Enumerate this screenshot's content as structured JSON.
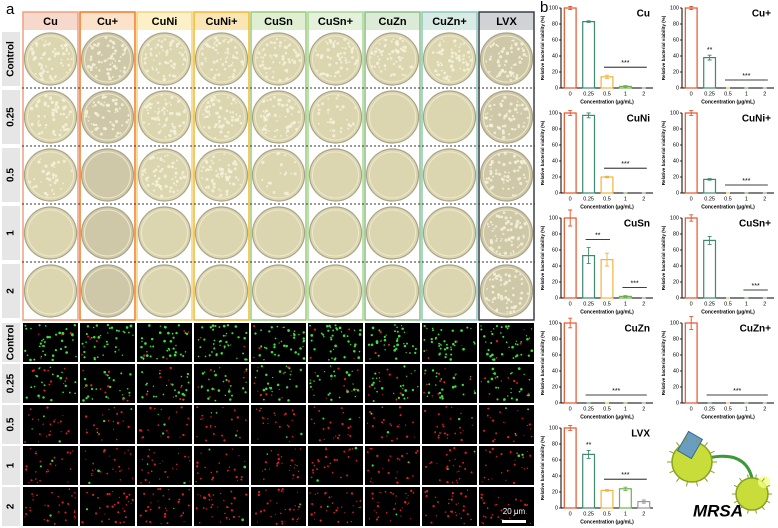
{
  "panel_a": {
    "label": "a",
    "columns": [
      "Cu",
      "Cu+",
      "CuNi",
      "CuNi+",
      "CuSn",
      "CuSn+",
      "CuZn",
      "CuZn+",
      "LVX"
    ],
    "rows": [
      "Control",
      "0.25",
      "0.5",
      "1",
      "2"
    ],
    "fluorescence_rows": [
      "Control",
      "0.25",
      "0.5",
      "1",
      "2"
    ],
    "scale_bar": "20 μm"
  },
  "panel_b": {
    "label": "b",
    "illustration_label": "MRSA"
  },
  "chart_data": [
    {
      "type": "bar",
      "title": "Cu",
      "categories": [
        "0",
        "0.25",
        "0.5",
        "1",
        "2"
      ],
      "values": [
        100,
        83,
        14,
        2,
        0
      ],
      "errors": [
        2,
        1,
        2,
        1,
        0
      ],
      "colors": [
        "#e4532a",
        "#3f8a6c",
        "#f0b43c",
        "#6db24e",
        "#999999"
      ],
      "ylim": [
        0,
        100
      ],
      "yticks": [
        0,
        20,
        40,
        60,
        80,
        100
      ],
      "xlabel": "Concentration (μg/mL)",
      "ylabel": "Relative bacterial viability (%)",
      "annotations": [
        {
          "text": "***",
          "from": "0.5",
          "to": "2"
        }
      ]
    },
    {
      "type": "bar",
      "title": "Cu+",
      "categories": [
        "0",
        "0.25",
        "0.5",
        "1",
        "2"
      ],
      "values": [
        100,
        38,
        0,
        0,
        0
      ],
      "errors": [
        2,
        3,
        0,
        0,
        0
      ],
      "colors": [
        "#e4532a",
        "#3f8a6c",
        "#f0b43c",
        "#6db24e",
        "#999999"
      ],
      "ylim": [
        0,
        100
      ],
      "yticks": [
        0,
        20,
        40,
        60,
        80,
        100
      ],
      "xlabel": "Concentration (μg/mL)",
      "ylabel": "Relative bacterial viability (%)",
      "annotations": [
        {
          "text": "**",
          "at": "0.25"
        },
        {
          "text": "***",
          "from": "0.5",
          "to": "2"
        }
      ]
    },
    {
      "type": "bar",
      "title": "CuNi",
      "categories": [
        "0",
        "0.25",
        "0.5",
        "1",
        "2"
      ],
      "values": [
        100,
        97,
        20,
        0,
        0
      ],
      "errors": [
        3,
        3,
        1,
        0,
        0
      ],
      "colors": [
        "#e4532a",
        "#3f8a6c",
        "#f0b43c",
        "#6db24e",
        "#999999"
      ],
      "ylim": [
        0,
        100
      ],
      "yticks": [
        0,
        20,
        40,
        60,
        80,
        100
      ],
      "xlabel": "Concentration (μg/mL)",
      "ylabel": "Relative bacterial viability (%)",
      "annotations": [
        {
          "text": "***",
          "from": "0.5",
          "to": "2"
        }
      ]
    },
    {
      "type": "bar",
      "title": "CuNi+",
      "categories": [
        "0",
        "0.25",
        "0.5",
        "1",
        "2"
      ],
      "values": [
        100,
        17,
        0,
        0,
        0
      ],
      "errors": [
        3,
        1,
        0,
        0,
        0
      ],
      "colors": [
        "#e4532a",
        "#3f8a6c",
        "#f0b43c",
        "#6db24e",
        "#999999"
      ],
      "ylim": [
        0,
        100
      ],
      "yticks": [
        0,
        20,
        40,
        60,
        80,
        100
      ],
      "xlabel": "Concentration (μg/mL)",
      "ylabel": "Relative bacterial viability (%)",
      "annotations": [
        {
          "text": "***",
          "from": "0.5",
          "to": "2"
        }
      ]
    },
    {
      "type": "bar",
      "title": "CuSn",
      "categories": [
        "0",
        "0.25",
        "0.5",
        "1",
        "2"
      ],
      "values": [
        100,
        53,
        48,
        2,
        0
      ],
      "errors": [
        10,
        10,
        8,
        1,
        0
      ],
      "colors": [
        "#e4532a",
        "#3f8a6c",
        "#f0b43c",
        "#6db24e",
        "#999999"
      ],
      "ylim": [
        0,
        100
      ],
      "yticks": [
        0,
        20,
        40,
        60,
        80,
        100
      ],
      "xlabel": "Concentration (μg/mL)",
      "ylabel": "Relative bacterial viability (%)",
      "annotations": [
        {
          "text": "**",
          "from": "0.25",
          "to": "0.5"
        },
        {
          "text": "***",
          "from": "1",
          "to": "2"
        }
      ]
    },
    {
      "type": "bar",
      "title": "CuSn+",
      "categories": [
        "0",
        "0.25",
        "0.5",
        "1",
        "2"
      ],
      "values": [
        100,
        72,
        0,
        0,
        0
      ],
      "errors": [
        4,
        5,
        0,
        0,
        0
      ],
      "colors": [
        "#e4532a",
        "#3f8a6c",
        "#f0b43c",
        "#6db24e",
        "#999999"
      ],
      "ylim": [
        0,
        100
      ],
      "yticks": [
        0,
        20,
        40,
        60,
        80,
        100
      ],
      "xlabel": "Concentration (μg/mL)",
      "ylabel": "Relative bacterial viability (%)",
      "annotations": [
        {
          "text": "***",
          "from": "1",
          "to": "2"
        }
      ]
    },
    {
      "type": "bar",
      "title": "CuZn",
      "categories": [
        "0",
        "0.25",
        "0.5",
        "1",
        "2"
      ],
      "values": [
        100,
        0,
        0,
        0,
        0
      ],
      "errors": [
        6,
        0,
        0,
        0,
        0
      ],
      "colors": [
        "#e4532a",
        "#3f8a6c",
        "#f0b43c",
        "#6db24e",
        "#999999"
      ],
      "ylim": [
        0,
        100
      ],
      "yticks": [
        0,
        20,
        40,
        60,
        80,
        100
      ],
      "xlabel": "Concentration (μg/mL)",
      "ylabel": "Relative bacterial viability (%)",
      "annotations": [
        {
          "text": "***",
          "from": "0.25",
          "to": "2"
        }
      ]
    },
    {
      "type": "bar",
      "title": "CuZn+",
      "categories": [
        "0",
        "0.25",
        "0.5",
        "1",
        "2"
      ],
      "values": [
        100,
        0,
        0,
        0,
        0
      ],
      "errors": [
        8,
        0,
        0,
        0,
        0
      ],
      "colors": [
        "#e4532a",
        "#3f8a6c",
        "#f0b43c",
        "#6db24e",
        "#999999"
      ],
      "ylim": [
        0,
        100
      ],
      "yticks": [
        0,
        20,
        40,
        60,
        80,
        100
      ],
      "xlabel": "Concentration (μg/mL)",
      "ylabel": "Relative bacterial viability (%)",
      "annotations": [
        {
          "text": "***",
          "from": "0.25",
          "to": "2"
        }
      ]
    },
    {
      "type": "bar",
      "title": "LVX",
      "categories": [
        "0",
        "0.25",
        "0.5",
        "1",
        "2"
      ],
      "values": [
        100,
        67,
        22,
        24,
        8
      ],
      "errors": [
        3,
        5,
        1,
        2,
        2
      ],
      "colors": [
        "#e4532a",
        "#3f8a6c",
        "#f0b43c",
        "#6db24e",
        "#999999"
      ],
      "ylim": [
        0,
        100
      ],
      "yticks": [
        0,
        20,
        40,
        60,
        80,
        100
      ],
      "xlabel": "Concentration (μg/mL)",
      "ylabel": "Relative bacterial viability (%)",
      "annotations": [
        {
          "text": "**",
          "at": "0.25"
        },
        {
          "text": "***",
          "from": "0.5",
          "to": "2"
        }
      ]
    }
  ]
}
